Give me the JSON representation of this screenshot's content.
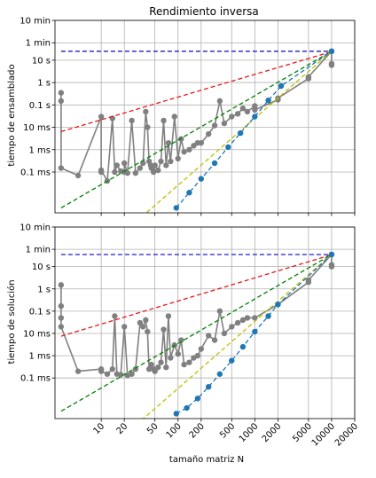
{
  "figure": {
    "xlabel": "tamaño matriz N",
    "x_ticks": [
      10,
      20,
      50,
      100,
      200,
      500,
      1000,
      2000,
      5000,
      10000,
      20000
    ],
    "y_ticks": [
      {
        "label": "0.1 ms",
        "value": 0.0001
      },
      {
        "label": "1 ms",
        "value": 0.001
      },
      {
        "label": "10 ms",
        "value": 0.01
      },
      {
        "label": "0.1 s",
        "value": 0.1
      },
      {
        "label": "1 s",
        "value": 1
      },
      {
        "label": "10 s",
        "value": 10
      },
      {
        "label": "1 min",
        "value": 60
      },
      {
        "label": "10 min",
        "value": 600
      }
    ],
    "xlim": [
      2.5,
      20000
    ],
    "ylim": [
      1.5e-06,
      600
    ],
    "scale": "log-log",
    "grid": true,
    "colors": {
      "measured": "#808080",
      "ref_constant": "#1f1fbf",
      "ref_linear": "#e31a1c",
      "ref_quadratic": "#008000",
      "ref_cubic": "#bfbf00",
      "ref_quartic": "#1f77b4"
    }
  },
  "chart_data": [
    {
      "type": "line",
      "title": "Rendimiento inversa",
      "xlabel": "",
      "ylabel": "tiempo de ensamblado",
      "series": [
        {
          "style": "measured",
          "x": [
            3,
            3,
            3,
            5,
            10,
            10,
            10,
            12,
            14,
            15,
            16,
            18,
            20,
            20,
            22,
            25,
            28,
            32,
            35,
            38,
            40,
            42,
            44,
            45,
            48,
            50,
            55,
            60,
            65,
            70,
            75,
            80,
            90,
            100,
            110,
            120,
            140,
            160,
            180,
            200,
            250,
            300,
            350,
            400,
            500,
            600,
            700,
            800,
            1000,
            1000,
            2000,
            2000,
            5000,
            5000,
            10000,
            10000,
            10000
          ],
          "y": [
            0.35,
            0.15,
            0.00015,
            7e-05,
            0.03,
            0.0001,
            0.00012,
            4e-05,
            0.025,
            0.0001,
            0.0002,
            0.00011,
            0.0001,
            0.00025,
            9e-05,
            0.02,
            9e-05,
            0.00015,
            0.00025,
            0.05,
            0.01,
            0.0003,
            0.0002,
            0.00015,
            0.0001,
            0.0002,
            0.00012,
            0.0003,
            0.02,
            0.0002,
            0.002,
            0.0003,
            0.03,
            0.0004,
            0.003,
            0.0008,
            0.001,
            0.0015,
            0.002,
            0.002,
            0.005,
            0.012,
            0.15,
            0.015,
            0.03,
            0.04,
            0.07,
            0.05,
            0.09,
            0.06,
            0.17,
            0.2,
            1.5,
            1.8,
            25,
            7,
            6
          ]
        },
        {
          "style": "ref_constant",
          "x": [
            3,
            10000
          ],
          "y": [
            25,
            25
          ]
        },
        {
          "style": "ref_linear",
          "x": [
            3,
            10000
          ],
          "y": [
            0.0064,
            24
          ]
        },
        {
          "style": "ref_quadratic",
          "x": [
            3,
            10000
          ],
          "y": [
            2.5e-06,
            25
          ]
        },
        {
          "style": "ref_cubic",
          "x": [
            3,
            10000
          ],
          "y": [
            7e-10,
            25
          ]
        },
        {
          "style": "ref_quartic",
          "x": [
            95,
            140,
            200,
            300,
            450,
            650,
            1000,
            1500,
            2200,
            10000
          ],
          "y": [
            2.5e-06,
            1.2e-05,
            5e-05,
            0.00025,
            0.0013,
            0.0055,
            0.03,
            0.16,
            0.7,
            25
          ]
        }
      ]
    },
    {
      "type": "line",
      "title": "",
      "xlabel": "tamaño matriz N",
      "ylabel": "tiempo de solución",
      "series": [
        {
          "style": "measured",
          "x": [
            3,
            3,
            3,
            3,
            5,
            10,
            10,
            12,
            14,
            15,
            16,
            18,
            20,
            22,
            25,
            28,
            32,
            35,
            38,
            40,
            42,
            44,
            45,
            48,
            50,
            55,
            60,
            65,
            70,
            75,
            80,
            90,
            100,
            110,
            120,
            140,
            160,
            180,
            200,
            250,
            300,
            350,
            400,
            500,
            600,
            700,
            800,
            1000,
            2000,
            5000,
            5000,
            10000,
            10000,
            10000
          ],
          "y": [
            1.5,
            0.17,
            0.05,
            0.02,
            0.0002,
            0.00025,
            0.0002,
            0.00015,
            0.00025,
            0.06,
            0.00015,
            0.00014,
            0.02,
            0.00013,
            0.00015,
            0.00025,
            0.03,
            0.02,
            0.04,
            0.012,
            0.00025,
            0.0003,
            0.0004,
            0.00025,
            0.0002,
            0.0003,
            0.0005,
            0.015,
            0.0003,
            0.06,
            0.0008,
            0.003,
            0.0012,
            0.005,
            0.0004,
            0.0005,
            0.0008,
            0.001,
            0.002,
            0.008,
            0.005,
            0.1,
            0.01,
            0.02,
            0.03,
            0.04,
            0.05,
            0.05,
            0.2,
            2,
            2.5,
            35,
            12,
            10
          ]
        },
        {
          "style": "ref_constant",
          "x": [
            3,
            10000
          ],
          "y": [
            35,
            35
          ]
        },
        {
          "style": "ref_linear",
          "x": [
            3,
            10000
          ],
          "y": [
            0.0075,
            34
          ]
        },
        {
          "style": "ref_quadratic",
          "x": [
            3,
            10000
          ],
          "y": [
            3.2e-06,
            35
          ]
        },
        {
          "style": "ref_cubic",
          "x": [
            3,
            10000
          ],
          "y": [
            9e-10,
            35
          ]
        },
        {
          "style": "ref_quartic",
          "x": [
            95,
            130,
            180,
            250,
            350,
            500,
            700,
            1000,
            1500,
            2000,
            10000
          ],
          "y": [
            2.5e-06,
            4.5e-06,
            1.2e-05,
            4e-05,
            0.00015,
            0.0006,
            0.0025,
            0.012,
            0.06,
            0.2,
            35
          ]
        }
      ]
    }
  ]
}
